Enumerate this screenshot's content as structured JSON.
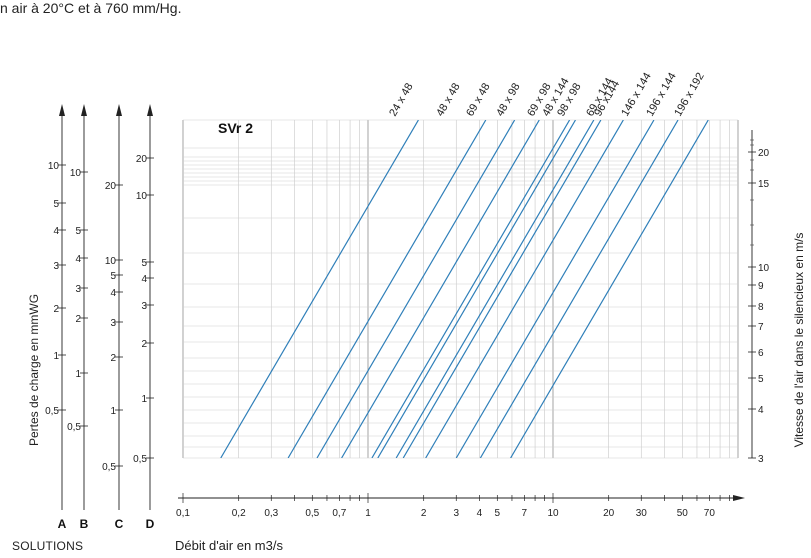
{
  "header_note": "n air à 20°C et à 760 mm/Hg.",
  "footer": {
    "left": "SOLUTIONS",
    "xlabel": "Débit d'air en m3/s"
  },
  "chart_data": {
    "type": "line",
    "title": "SVr 2",
    "xlabel": "Débit d'air en m3/s",
    "ylabel_left": "Pertes de charge en mmWG",
    "ylabel_right": "Vitesse de l'air dans le silencieux en m/s",
    "x_scale": "log",
    "xlim": [
      0.1,
      100
    ],
    "x_ticks": [
      "0,1",
      "0,2",
      "0,3",
      "0,5",
      "0,7",
      "1",
      "2",
      "3",
      "4",
      "5",
      "7",
      "10",
      "20",
      "30",
      "50",
      "70"
    ],
    "x_tick_values": [
      0.1,
      0.2,
      0.3,
      0.5,
      0.7,
      1,
      2,
      3,
      4,
      5,
      7,
      10,
      20,
      30,
      50,
      70
    ],
    "left_scales": [
      {
        "label": "A",
        "ticks": [
          "10",
          "5",
          "4",
          "3",
          "2",
          "1",
          "0,5"
        ]
      },
      {
        "label": "B",
        "ticks": [
          "10",
          "5",
          "4",
          "3",
          "2",
          "1",
          "0,5"
        ]
      },
      {
        "label": "C",
        "ticks": [
          "20",
          "10",
          "5",
          "4",
          "3",
          "2",
          "1",
          "0,5"
        ]
      },
      {
        "label": "D",
        "ticks": [
          "20",
          "10",
          "5",
          "4",
          "3",
          "2",
          "1",
          "0,5"
        ]
      }
    ],
    "right_ticks": [
      "20",
      "15",
      "10",
      "9",
      "8",
      "7",
      "6",
      "5",
      "4",
      "3"
    ],
    "series": [
      {
        "name": "24 x 48",
        "x_start": 0.16
      },
      {
        "name": "48 x 48",
        "x_start": 0.37
      },
      {
        "name": "69 x 48",
        "x_start": 0.53
      },
      {
        "name": "48 x 98",
        "x_start": 0.72
      },
      {
        "name": "69 x 98",
        "x_start": 1.05
      },
      {
        "name": "48 x 144",
        "x_start": 1.13
      },
      {
        "name": "98 x 98",
        "x_start": 1.42
      },
      {
        "name": "69 x 144",
        "x_start": 1.55
      },
      {
        "name": "96 x144",
        "x_start": 2.05
      },
      {
        "name": "146 x 144",
        "x_start": 3.0
      },
      {
        "name": "196 x 144",
        "x_start": 4.05
      },
      {
        "name": "196 x 192",
        "x_start": 5.9
      }
    ],
    "grid": true,
    "line_color": "#2f7fb9"
  }
}
